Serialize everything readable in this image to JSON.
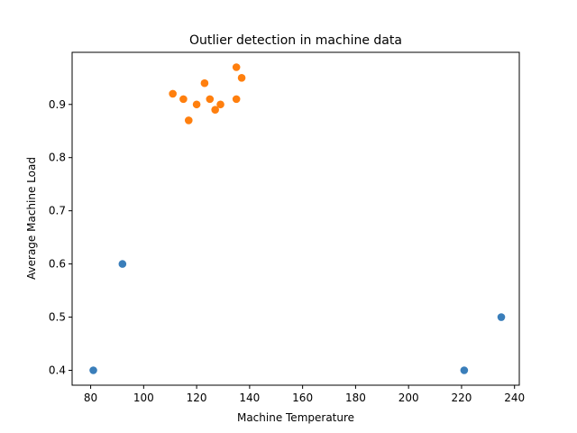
{
  "chart_data": {
    "type": "scatter",
    "title": "Outlier detection in machine data",
    "xlabel": "Machine Temperature",
    "ylabel": "Average Machine Load",
    "xlim": [
      73,
      241.8
    ],
    "ylim": [
      0.372,
      0.998
    ],
    "xticks": [
      "80",
      "100",
      "120",
      "140",
      "160",
      "180",
      "200",
      "220",
      "240"
    ],
    "yticks": [
      "0.4",
      "0.5",
      "0.6",
      "0.7",
      "0.8",
      "0.9"
    ],
    "grid": false,
    "legend": "none",
    "series": [
      {
        "color": "#3a7eba",
        "points": [
          [
            81,
            0.4
          ],
          [
            92,
            0.6
          ],
          [
            221,
            0.4
          ],
          [
            235,
            0.5
          ]
        ]
      },
      {
        "color": "#ff7f0e",
        "points": [
          [
            111,
            0.92
          ],
          [
            115,
            0.91
          ],
          [
            117,
            0.87
          ],
          [
            120,
            0.9
          ],
          [
            123,
            0.94
          ],
          [
            125,
            0.91
          ],
          [
            127,
            0.89
          ],
          [
            129,
            0.9
          ],
          [
            135,
            0.97
          ],
          [
            135,
            0.91
          ],
          [
            137,
            0.95
          ]
        ]
      }
    ]
  }
}
